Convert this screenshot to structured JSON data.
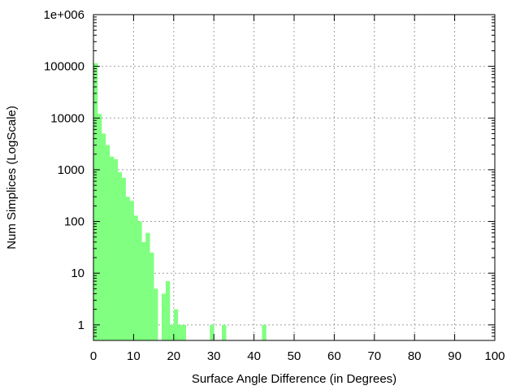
{
  "chart_data": {
    "type": "bar",
    "title": "",
    "xlabel": "Surface Angle Difference (in Degrees)",
    "ylabel": "Num Simplices (LogScale)",
    "x_scale": "linear",
    "y_scale": "log",
    "xlim": [
      0,
      100
    ],
    "ylim": [
      0.5,
      1000000
    ],
    "grid": true,
    "legend": "none",
    "bar_color": "#80ff80",
    "bin_width": 1,
    "x_ticks": [
      0,
      10,
      20,
      30,
      40,
      50,
      60,
      70,
      80,
      90,
      100
    ],
    "x_tick_labels": [
      "0",
      "10",
      "20",
      "30",
      "40",
      "50",
      "60",
      "70",
      "80",
      "90",
      "100"
    ],
    "y_ticks": [
      1,
      10,
      100,
      1000,
      10000,
      100000,
      1000000
    ],
    "y_tick_labels": [
      "1",
      "10",
      "100",
      "1000",
      "10000",
      "100000",
      "1e+006"
    ],
    "x": [
      0,
      1,
      2,
      3,
      4,
      5,
      6,
      7,
      8,
      9,
      10,
      11,
      12,
      13,
      14,
      15,
      17,
      18,
      19,
      20,
      21,
      22,
      29,
      32,
      42
    ],
    "values": [
      115000,
      12000,
      5000,
      3000,
      1800,
      1600,
      900,
      700,
      300,
      250,
      130,
      100,
      40,
      60,
      25,
      5,
      4,
      7,
      1,
      2,
      1,
      1,
      1,
      1,
      1
    ]
  }
}
